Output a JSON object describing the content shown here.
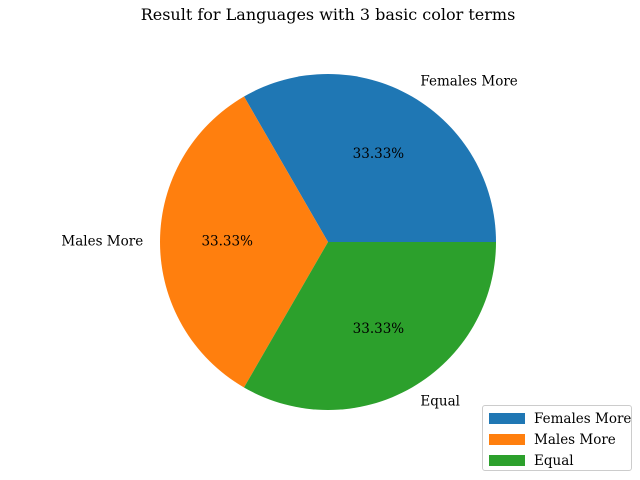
{
  "chart_data": {
    "type": "pie",
    "title": "Result for Languages with 3 basic color terms",
    "categories": [
      "Females More",
      "Males More",
      "Equal"
    ],
    "values": [
      1,
      1,
      1
    ],
    "percent_labels": [
      "33.33%",
      "33.33%",
      "33.33%"
    ],
    "colors": [
      "#1f77b4",
      "#ff7f0e",
      "#2ca02c"
    ],
    "start_angle_deg": 0,
    "direction": "counterclockwise",
    "legend": {
      "placement": "lower-right",
      "entries": [
        "Females More",
        "Males More",
        "Equal"
      ]
    }
  }
}
